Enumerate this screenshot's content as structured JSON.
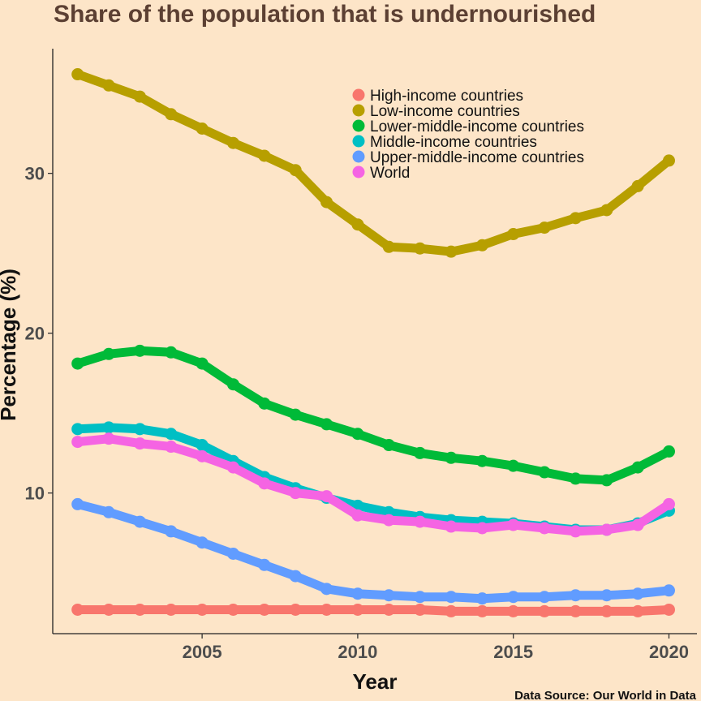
{
  "chart_data": {
    "type": "line",
    "title": "Share of the population that is undernourished",
    "xlabel": "Year",
    "ylabel": "Percentage (%)",
    "caption": "Data Source: Our World in Data",
    "xlim": [
      2000.2,
      2020.9
    ],
    "ylim": [
      1.2,
      37.8
    ],
    "x_ticks": [
      2005,
      2010,
      2015,
      2020
    ],
    "y_ticks": [
      10,
      20,
      30
    ],
    "grid": false,
    "legend_position": "top-right",
    "x": [
      2001,
      2002,
      2003,
      2004,
      2005,
      2006,
      2007,
      2008,
      2009,
      2010,
      2011,
      2012,
      2013,
      2014,
      2015,
      2016,
      2017,
      2018,
      2019,
      2020
    ],
    "series": [
      {
        "name": "High-income countries",
        "color": "#F8766D",
        "values": [
          2.7,
          2.7,
          2.7,
          2.7,
          2.7,
          2.7,
          2.7,
          2.7,
          2.7,
          2.7,
          2.7,
          2.7,
          2.6,
          2.6,
          2.6,
          2.6,
          2.6,
          2.6,
          2.6,
          2.7
        ]
      },
      {
        "name": "Low-income countries",
        "color": "#B79F00",
        "values": [
          36.2,
          35.5,
          34.8,
          33.7,
          32.8,
          31.9,
          31.1,
          30.2,
          28.2,
          26.8,
          25.4,
          25.3,
          25.1,
          25.5,
          26.2,
          26.6,
          27.2,
          27.7,
          29.2,
          30.8
        ]
      },
      {
        "name": "Lower-middle-income countries",
        "color": "#00BA38",
        "values": [
          18.1,
          18.7,
          18.9,
          18.8,
          18.1,
          16.8,
          15.6,
          14.9,
          14.3,
          13.7,
          13.0,
          12.5,
          12.2,
          12.0,
          11.7,
          11.3,
          10.9,
          10.8,
          11.6,
          12.6
        ]
      },
      {
        "name": "Middle-income countries",
        "color": "#00BFC4",
        "values": [
          14.0,
          14.1,
          14.0,
          13.7,
          13.0,
          12.0,
          11.0,
          10.3,
          9.7,
          9.2,
          8.8,
          8.5,
          8.3,
          8.2,
          8.1,
          7.9,
          7.7,
          7.7,
          8.1,
          8.9
        ]
      },
      {
        "name": "Upper-middle-income countries",
        "color": "#619CFF",
        "values": [
          9.3,
          8.8,
          8.2,
          7.6,
          6.9,
          6.2,
          5.5,
          4.8,
          4.0,
          3.7,
          3.6,
          3.5,
          3.5,
          3.4,
          3.5,
          3.5,
          3.6,
          3.6,
          3.7,
          3.9
        ]
      },
      {
        "name": "World",
        "color": "#F564E3",
        "values": [
          13.2,
          13.4,
          13.1,
          12.9,
          12.3,
          11.6,
          10.6,
          10.0,
          9.8,
          8.6,
          8.3,
          8.2,
          7.9,
          7.8,
          8.0,
          7.8,
          7.6,
          7.7,
          8.0,
          9.3
        ]
      }
    ]
  }
}
